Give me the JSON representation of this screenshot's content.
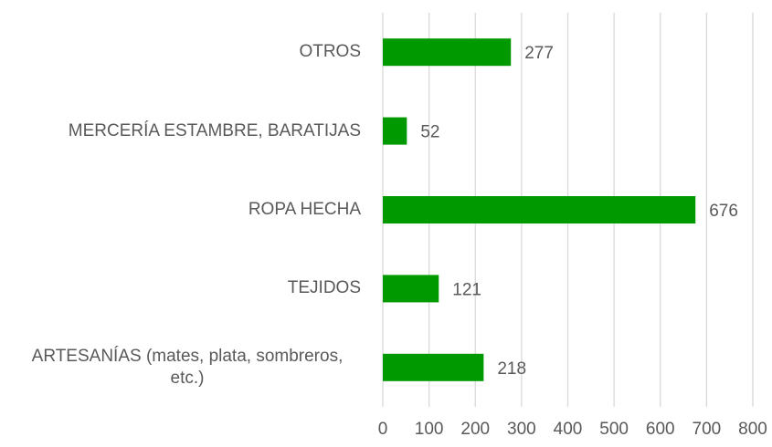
{
  "chart_data": {
    "type": "bar",
    "orientation": "horizontal",
    "categories": [
      "OTROS",
      "MERCERÍA ESTAMBRE, BARATIJAS",
      "ROPA HECHA",
      "TEJIDOS",
      "ARTESANÍAS (mates, plata, sombreros, etc.)"
    ],
    "values": [
      277,
      52,
      676,
      121,
      218
    ],
    "color": "#009900",
    "xlim": [
      0,
      800
    ],
    "xticks": [
      0,
      100,
      200,
      300,
      400,
      500,
      600,
      700,
      800
    ],
    "grid": true
  }
}
